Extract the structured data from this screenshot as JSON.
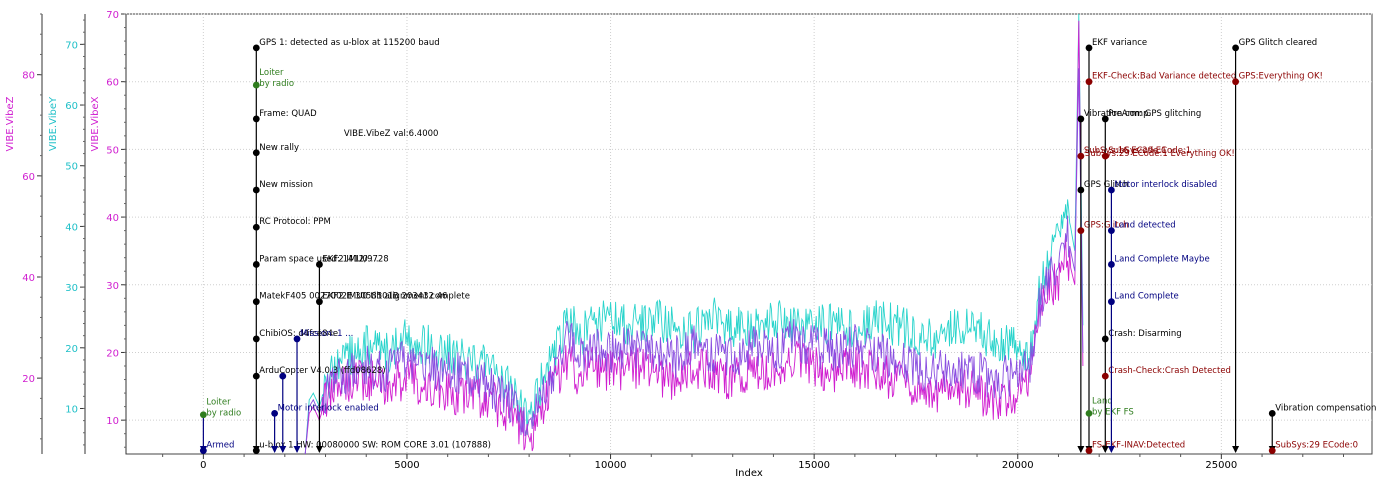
{
  "chart_data": {
    "type": "line",
    "xlabel": "Index",
    "xlim": [
      -1900,
      28700
    ],
    "x_ticks": [
      0,
      5000,
      10000,
      15000,
      20000,
      25000
    ],
    "grid": true,
    "axes": [
      {
        "id": "vibez",
        "label": "VIBE.VibeZ",
        "color": "#d01fd0",
        "ylim": [
          5,
          92
        ],
        "ticks": [
          20,
          40,
          60,
          80
        ]
      },
      {
        "id": "vibey",
        "label": "VIBE.VibeY",
        "color": "#20c0c8",
        "ylim": [
          2.5,
          75
        ],
        "ticks": [
          10,
          20,
          30,
          40,
          50,
          60,
          70
        ]
      },
      {
        "id": "vibex",
        "label": "VIBE.VibeX",
        "color": "#d01fd0",
        "ylim": [
          5,
          70
        ],
        "ticks": [
          10,
          20,
          30,
          40,
          50,
          60,
          70
        ]
      }
    ],
    "series_color": {
      "vibex": "#d01fd0",
      "vibey": "#2ad4cc",
      "vibez": "#8a4fe0"
    },
    "series": [
      {
        "name": "VIBE.VibeY",
        "axis": "vibex",
        "color": "#2ad4cc",
        "x": [
          2500,
          2600,
          2700,
          2850,
          3000,
          3200,
          3500,
          4000,
          4500,
          5000,
          5500,
          6000,
          6500,
          7000,
          7500,
          7800,
          8000,
          8200,
          8500,
          8800,
          9000,
          9200,
          9500,
          10000,
          10500,
          11000,
          11500,
          12000,
          12500,
          13000,
          13500,
          14000,
          14500,
          15000,
          15500,
          16000,
          16500,
          17000,
          17500,
          18000,
          18500,
          19000,
          19500,
          20000,
          20300,
          20500,
          20800,
          21000,
          21200,
          21400,
          21500,
          21600
        ],
        "y": [
          5,
          13,
          14,
          12,
          15,
          17,
          19,
          21,
          20,
          22,
          21,
          20,
          19,
          18,
          15,
          12,
          9,
          14,
          18,
          22,
          26,
          22,
          24,
          25,
          24,
          25,
          24,
          23,
          25,
          24,
          23,
          25,
          24,
          25,
          24,
          23,
          25,
          24,
          23,
          22,
          24,
          23,
          22,
          21,
          20,
          28,
          35,
          37,
          42,
          35,
          70,
          24
        ]
      },
      {
        "name": "VIBE.VibeX",
        "axis": "vibex",
        "color": "#d01fd0",
        "x": [
          2500,
          2600,
          2700,
          2850,
          3000,
          3200,
          3500,
          4000,
          4500,
          5000,
          5500,
          6000,
          6500,
          7000,
          7500,
          7800,
          8000,
          8200,
          8500,
          8800,
          9000,
          9200,
          9500,
          10000,
          10500,
          11000,
          11500,
          12000,
          12500,
          13000,
          13500,
          14000,
          14500,
          15000,
          15500,
          16000,
          16500,
          17000,
          17500,
          18000,
          18500,
          19000,
          19500,
          20000,
          20300,
          20500,
          20800,
          21000,
          21200,
          21400,
          21500,
          21600
        ],
        "y": [
          5,
          11,
          12,
          10,
          13,
          14,
          15,
          16,
          15,
          16,
          15,
          14,
          14,
          13,
          11,
          9,
          7,
          11,
          14,
          17,
          20,
          16,
          18,
          17,
          18,
          17,
          16,
          18,
          17,
          16,
          18,
          17,
          19,
          18,
          17,
          18,
          17,
          16,
          15,
          14,
          15,
          14,
          13,
          14,
          15,
          25,
          30,
          30,
          35,
          30,
          69,
          18
        ]
      },
      {
        "name": "VIBE.VibeZ",
        "axis": "vibex",
        "color": "#8a4fe0",
        "x": [
          2500,
          2600,
          2700,
          2850,
          3000,
          3200,
          3500,
          4000,
          4500,
          5000,
          5500,
          6000,
          6500,
          7000,
          7500,
          7800,
          8000,
          8200,
          8500,
          8800,
          9000,
          9200,
          9500,
          10000,
          10500,
          11000,
          11500,
          12000,
          12500,
          13000,
          13500,
          14000,
          14500,
          15000,
          15500,
          16000,
          16500,
          17000,
          17500,
          18000,
          18500,
          19000,
          19500,
          20000,
          20300,
          20500,
          20800,
          21000,
          21200,
          21400,
          21500,
          21600
        ],
        "y": [
          5,
          12,
          13,
          11,
          14,
          16,
          17,
          18,
          17,
          19,
          18,
          17,
          17,
          15,
          13,
          10,
          8,
          12,
          16,
          19,
          23,
          19,
          21,
          20,
          21,
          20,
          19,
          21,
          20,
          19,
          21,
          20,
          22,
          21,
          20,
          21,
          20,
          19,
          18,
          17,
          18,
          17,
          16,
          17,
          18,
          26,
          32,
          32,
          38,
          32,
          62,
          20
        ]
      }
    ],
    "events": [
      {
        "x": 0,
        "arrow_color": "#000080",
        "markers": [
          {
            "y": 10.8,
            "text": "Loiter\nby radio",
            "color": "#2f7d1e"
          },
          {
            "y": 5.5,
            "text": "Armed",
            "color": "#000080"
          }
        ]
      },
      {
        "x": 1300,
        "arrow_color": "#000000",
        "markers": [
          {
            "y": 65,
            "text": "GPS 1: detected as u-blox at 115200 baud",
            "color": "#000000"
          },
          {
            "y": 59.5,
            "text": "Loiter\nby radio",
            "color": "#2f7d1e"
          },
          {
            "y": 54.5,
            "text": "Frame: QUAD",
            "color": "#000000"
          },
          {
            "y": 49.5,
            "text": "New rally",
            "color": "#000000"
          },
          {
            "y": 44,
            "text": "New mission",
            "color": "#000000"
          },
          {
            "y": 38.5,
            "text": "RC Protocol: PPM",
            "color": "#000000"
          },
          {
            "y": 33,
            "text": "Param space used: 1412/9728",
            "color": "#000000"
          },
          {
            "y": 27.5,
            "text": "MatekF405 0027002E 3058501B 203432 46",
            "color": "#000000"
          },
          {
            "y": 22,
            "text": "ChibiOS: d4fce84e",
            "color": "#000000"
          },
          {
            "y": 16.5,
            "text": "ArduCopter V4.0.3 (ffd08628)",
            "color": "#000000"
          },
          {
            "y": 5.5,
            "text": "u-blox 1 HW: 00080000 SW: ROM CORE 3.01 (107888)",
            "color": "#000000"
          }
        ]
      },
      {
        "x": 1750,
        "arrow_color": "#000080",
        "markers": [
          {
            "y": 11,
            "text": "Motor interlock enabled",
            "color": "#000080"
          }
        ]
      },
      {
        "x": 1950,
        "arrow_color": "#000080",
        "markers": [
          {
            "y": 16.5,
            "text": "",
            "color": "#000080"
          }
        ]
      },
      {
        "x": 2300,
        "arrow_color": "#000080",
        "markers": [
          {
            "y": 22,
            "text": "Mission: 1 ...",
            "color": "#000080"
          }
        ]
      },
      {
        "x": 2850,
        "arrow_color": "#000000",
        "markers": [
          {
            "y": 33,
            "text": "EKF2 IMU0 ...",
            "color": "#000000"
          },
          {
            "y": 27.5,
            "text": "EKF2 IMU0 tilt alignment complete",
            "color": "#000000"
          }
        ]
      },
      {
        "x": 21550,
        "arrow_color": "#000000",
        "markers": [
          {
            "y": 49,
            "text": "SubSys:16 ECode:1",
            "color": "#8b0000"
          },
          {
            "y": 38,
            "text": "GPS:Glitch",
            "color": "#8b0000"
          },
          {
            "y": 54.5,
            "text": "Vibration comp.",
            "color": "#000000"
          },
          {
            "y": 44,
            "text": "GPS Glitch",
            "color": "#000000"
          }
        ]
      },
      {
        "x": 21750,
        "arrow_color": "#000000",
        "markers": [
          {
            "y": 65,
            "text": "EKF variance",
            "color": "#000000"
          },
          {
            "y": 60,
            "text": "EKF-Check:Bad Variance detected",
            "color": "#8b0000"
          },
          {
            "y": 11,
            "text": "Land\nby EKF FS",
            "color": "#2f7d1e"
          },
          {
            "y": 5.5,
            "text": "FS-EKF-INAV:Detected",
            "color": "#8b0000"
          }
        ]
      },
      {
        "x": 22150,
        "arrow_color": "#000000",
        "markers": [
          {
            "y": 54.5,
            "text": "PreArm: GPS glitching",
            "color": "#000000"
          },
          {
            "y": 49,
            "text": "SubSys:29 ECode:1",
            "color": "#8b0000"
          },
          {
            "y": 22,
            "text": "Crash: Disarming",
            "color": "#000000"
          },
          {
            "y": 16.5,
            "text": "Crash-Check:Crash Detected",
            "color": "#8b0000"
          }
        ]
      },
      {
        "x": 22300,
        "arrow_color": "#000080",
        "markers": [
          {
            "y": 44,
            "text": "Motor interlock disabled",
            "color": "#000080"
          },
          {
            "y": 38,
            "text": "Land detected",
            "color": "#000080"
          },
          {
            "y": 33,
            "text": "Land Complete Maybe",
            "color": "#000080"
          },
          {
            "y": 27.5,
            "text": "Land Complete",
            "color": "#000080"
          }
        ]
      },
      {
        "x": 25350,
        "arrow_color": "#000000",
        "markers": [
          {
            "y": 65,
            "text": "GPS Glitch cleared",
            "color": "#000000"
          },
          {
            "y": 60,
            "text": "GPS:Everything OK!",
            "color": "#8b0000"
          }
        ]
      },
      {
        "x": 26250,
        "arrow_color": "#000000",
        "markers": [
          {
            "y": 11,
            "text": "Vibration compensation",
            "color": "#000000"
          },
          {
            "y": 5.5,
            "text": "SubSys:29 ECode:0",
            "color": "#8b0000"
          }
        ]
      }
    ],
    "annotations": [
      {
        "x": 3450,
        "y": 52,
        "text": "VIBE.VibeZ  val:6.4000",
        "color": "#000000"
      },
      {
        "x": 21650,
        "y": 49,
        "text": "SubSys:29 ECode:1 Everything OK!",
        "color": "#8b0000"
      }
    ]
  }
}
